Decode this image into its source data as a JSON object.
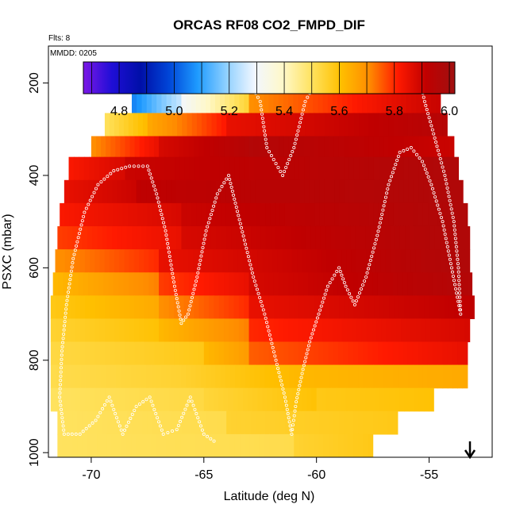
{
  "chart_data": {
    "type": "heatmap",
    "title": "ORCAS RF08 CO2_FMPD_DIF",
    "flights_label": "Flts: 8",
    "date_label": "MMDD: 0205",
    "xlabel": "Latitude (deg N)",
    "ylabel": "PSXC (mbar)",
    "xlim": [
      -71.9,
      -52.2
    ],
    "ylim_reversed": [
      1010,
      120
    ],
    "xticks": [
      "-70",
      "-65",
      "-60",
      "-55"
    ],
    "xtick_values": [
      -70,
      -65,
      -60,
      -55
    ],
    "yticks": [
      "200",
      "400",
      "600",
      "800",
      "1000"
    ],
    "ytick_values": [
      200,
      400,
      600,
      800,
      1000
    ],
    "colorbar": {
      "min": 4.67,
      "max": 6.02,
      "ticks": [
        "4.8",
        "5.0",
        "5.2",
        "5.4",
        "5.6",
        "5.8",
        "6.0"
      ],
      "tick_values": [
        4.8,
        5.0,
        5.2,
        5.4,
        5.6,
        5.8,
        6.0
      ],
      "colors": [
        "#7b18e6",
        "#1f0ed6",
        "#000fa8",
        "#0046d8",
        "#1e9bff",
        "#8fd0ff",
        "#f2f7ff",
        "#fff8c8",
        "#ffe25e",
        "#ffc000",
        "#ff8c00",
        "#ff1a00",
        "#c00000",
        "#a01010"
      ]
    },
    "grid": false,
    "legend": "colorbar at top",
    "annotation": "down-arrow at bottom right",
    "rows": [
      {
        "p": 190,
        "segments": [
          [
            -67.9,
            -66.2,
            4.72,
            5.1
          ],
          [
            -66.2,
            -63.0,
            5.0,
            5.35
          ],
          [
            -63.0,
            -61.0,
            5.62,
            5.55
          ],
          [
            -61.0,
            -55.3,
            5.45,
            5.3
          ],
          [
            -55.3,
            -54.9,
            5.2,
            5.6
          ]
        ]
      },
      {
        "p": 240,
        "segments": [
          [
            -68.2,
            -66.0,
            5.05,
            5.25
          ],
          [
            -66.0,
            -63.0,
            5.3,
            5.55
          ],
          [
            -63.0,
            -54.7,
            5.7,
            5.9
          ],
          [
            -54.7,
            -54.5,
            5.9,
            5.9
          ]
        ]
      },
      {
        "p": 290,
        "segments": [
          [
            -69.4,
            -67.5,
            5.5,
            5.62
          ],
          [
            -67.5,
            -64.0,
            5.65,
            5.82
          ],
          [
            -64.0,
            -54.2,
            5.85,
            5.95
          ]
        ]
      },
      {
        "p": 340,
        "segments": [
          [
            -70.0,
            -67.0,
            5.7,
            5.85
          ],
          [
            -67.0,
            -63.0,
            5.88,
            5.95
          ],
          [
            -63.0,
            -53.9,
            5.96,
            5.9
          ]
        ]
      },
      {
        "p": 385,
        "segments": [
          [
            -71.0,
            -68.5,
            5.82,
            5.88
          ],
          [
            -68.5,
            -53.7,
            5.9,
            5.97
          ]
        ]
      },
      {
        "p": 435,
        "segments": [
          [
            -71.2,
            -68.0,
            5.85,
            5.9
          ],
          [
            -68.0,
            -53.5,
            5.92,
            5.97
          ]
        ]
      },
      {
        "p": 485,
        "segments": [
          [
            -71.4,
            -66.0,
            5.82,
            5.88
          ],
          [
            -66.0,
            -53.3,
            5.9,
            5.97
          ]
        ]
      },
      {
        "p": 535,
        "segments": [
          [
            -71.5,
            -66.0,
            5.78,
            5.85
          ],
          [
            -66.0,
            -53.2,
            5.88,
            5.97
          ]
        ]
      },
      {
        "p": 585,
        "segments": [
          [
            -71.6,
            -67.0,
            5.7,
            5.8
          ],
          [
            -67.0,
            -53.2,
            5.85,
            5.97
          ]
        ]
      },
      {
        "p": 635,
        "segments": [
          [
            -71.7,
            -67.0,
            5.62,
            5.72
          ],
          [
            -67.0,
            -63.0,
            5.78,
            5.85
          ],
          [
            -63.0,
            -53.1,
            5.88,
            5.96
          ]
        ]
      },
      {
        "p": 685,
        "segments": [
          [
            -71.8,
            -67.0,
            5.58,
            5.65
          ],
          [
            -67.0,
            -63.0,
            5.7,
            5.8
          ],
          [
            -63.0,
            -53.0,
            5.85,
            5.92
          ]
        ]
      },
      {
        "p": 735,
        "segments": [
          [
            -71.8,
            -67.0,
            5.55,
            5.6
          ],
          [
            -67.0,
            -63.0,
            5.62,
            5.72
          ],
          [
            -63.0,
            -53.2,
            5.8,
            5.88
          ]
        ]
      },
      {
        "p": 785,
        "segments": [
          [
            -71.8,
            -65.0,
            5.53,
            5.58
          ],
          [
            -65.0,
            -63.0,
            5.62,
            5.68
          ],
          [
            -63.0,
            -53.3,
            5.75,
            5.85
          ]
        ]
      },
      {
        "p": 835,
        "segments": [
          [
            -71.8,
            -66.0,
            5.52,
            5.55
          ],
          [
            -66.0,
            -61.0,
            5.55,
            5.62
          ],
          [
            -61.0,
            -53.3,
            5.62,
            5.65
          ]
        ]
      },
      {
        "p": 885,
        "segments": [
          [
            -71.8,
            -65.0,
            5.5,
            5.53
          ],
          [
            -65.0,
            -60.0,
            5.54,
            5.6
          ],
          [
            -60.0,
            -54.8,
            5.58,
            5.6
          ]
        ]
      },
      {
        "p": 935,
        "segments": [
          [
            -71.5,
            -64.0,
            5.5,
            5.52
          ],
          [
            -64.0,
            -56.4,
            5.55,
            5.58
          ]
        ]
      },
      {
        "p": 985,
        "segments": [
          [
            -71.5,
            -61.0,
            5.5,
            5.52
          ],
          [
            -61.0,
            -57.5,
            5.55,
            5.58
          ]
        ]
      }
    ],
    "flight_track": [
      [
        -67.8,
        195
      ],
      [
        -63.0,
        195
      ],
      [
        -62.5,
        240
      ],
      [
        -62.2,
        340
      ],
      [
        -61.5,
        400
      ],
      [
        -61.0,
        340
      ],
      [
        -60.5,
        240
      ],
      [
        -60.0,
        195
      ],
      [
        -55.4,
        195
      ],
      [
        -55.2,
        240
      ],
      [
        -54.8,
        310
      ],
      [
        -54.3,
        400
      ],
      [
        -53.9,
        500
      ],
      [
        -53.7,
        600
      ],
      [
        -53.6,
        700
      ],
      [
        -54.0,
        600
      ],
      [
        -54.4,
        500
      ],
      [
        -54.9,
        420
      ],
      [
        -55.3,
        370
      ],
      [
        -55.8,
        340
      ],
      [
        -56.3,
        350
      ],
      [
        -56.8,
        420
      ],
      [
        -57.3,
        530
      ],
      [
        -57.8,
        620
      ],
      [
        -58.3,
        680
      ],
      [
        -58.7,
        640
      ],
      [
        -59.0,
        600
      ],
      [
        -59.5,
        640
      ],
      [
        -59.9,
        700
      ],
      [
        -60.3,
        760
      ],
      [
        -60.6,
        820
      ],
      [
        -60.9,
        890
      ],
      [
        -61.1,
        960
      ],
      [
        -61.4,
        880
      ],
      [
        -61.8,
        800
      ],
      [
        -62.3,
        700
      ],
      [
        -62.8,
        620
      ],
      [
        -63.2,
        540
      ],
      [
        -63.6,
        460
      ],
      [
        -63.9,
        400
      ],
      [
        -64.4,
        440
      ],
      [
        -64.9,
        520
      ],
      [
        -65.3,
        620
      ],
      [
        -65.7,
        700
      ],
      [
        -66.0,
        720
      ],
      [
        -66.3,
        640
      ],
      [
        -66.7,
        520
      ],
      [
        -67.1,
        440
      ],
      [
        -67.5,
        380
      ],
      [
        -68.3,
        380
      ],
      [
        -69.0,
        390
      ],
      [
        -69.7,
        420
      ],
      [
        -70.3,
        480
      ],
      [
        -70.8,
        580
      ],
      [
        -71.1,
        680
      ],
      [
        -71.3,
        780
      ],
      [
        -71.4,
        880
      ],
      [
        -71.2,
        960
      ],
      [
        -70.5,
        960
      ],
      [
        -69.8,
        930
      ],
      [
        -69.2,
        880
      ],
      [
        -68.6,
        960
      ],
      [
        -68.0,
        900
      ],
      [
        -67.4,
        880
      ],
      [
        -66.8,
        960
      ],
      [
        -66.2,
        950
      ],
      [
        -65.6,
        880
      ],
      [
        -65.0,
        960
      ],
      [
        -64.4,
        980
      ]
    ]
  }
}
